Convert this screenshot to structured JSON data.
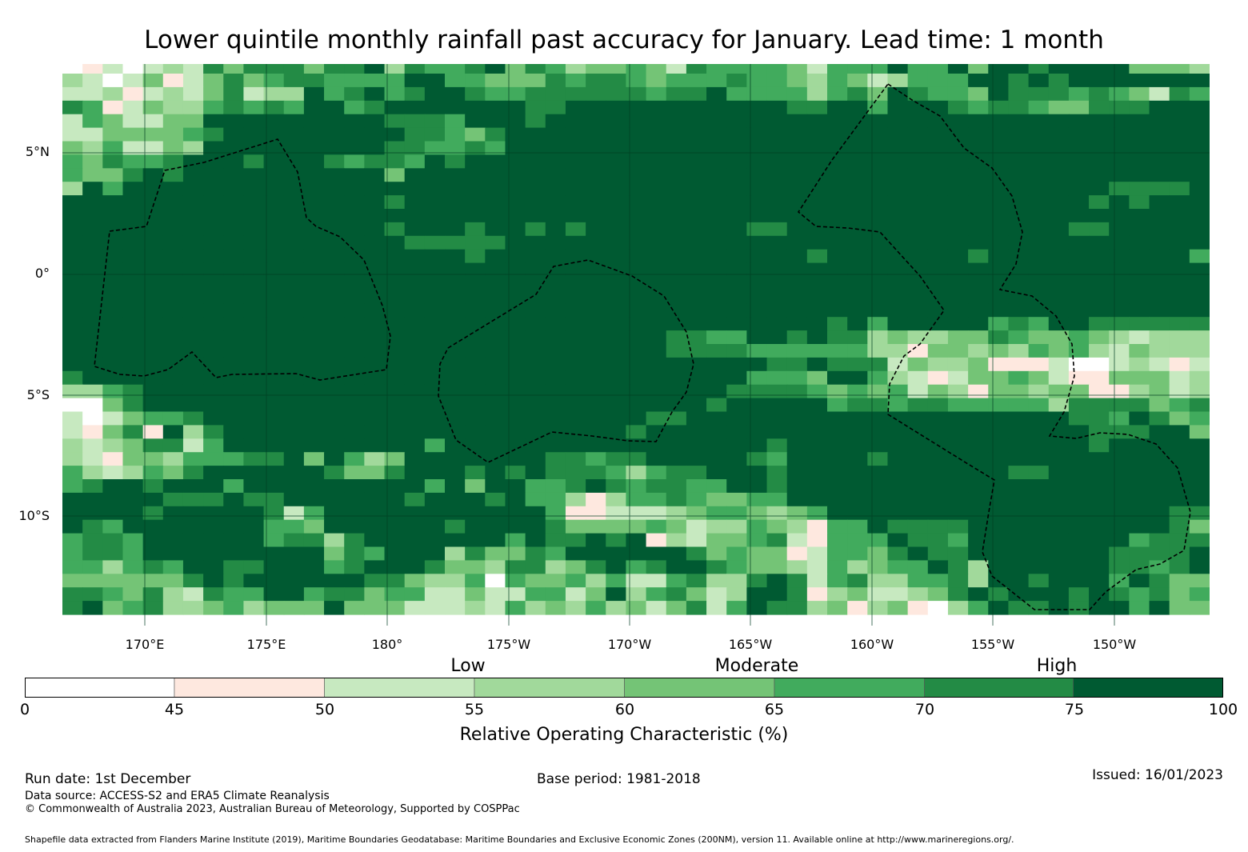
{
  "title": "Lower quintile monthly rainfall past accuracy for January. Lead time: 1 month",
  "lat_labels": [
    "5°N",
    "0°",
    "5°S",
    "10°S"
  ],
  "lon_labels": [
    "170°E",
    "175°E",
    "180°",
    "175°W",
    "170°W",
    "165°W",
    "160°W",
    "155°W",
    "150°W"
  ],
  "colorbar": {
    "levels": [
      "Low",
      "Moderate",
      "High"
    ],
    "ticks": [
      "0",
      "45",
      "50",
      "55",
      "60",
      "65",
      "70",
      "75",
      "100"
    ],
    "label": "Relative Operating Characteristic (%)"
  },
  "footer": {
    "run_date": "Run date: 1st December",
    "base_period": "Base period: 1981-2018",
    "issued": "Issued: 16/01/2023",
    "data_source": "Data source: ACCESS-S2 and ERA5 Climate Reanalysis",
    "copyright": "© Commonwealth of Australia 2023, Australian Bureau of Meteorology, Supported by COSPPac",
    "shapefile": "Shapefile data extracted from Flanders Marine Institute (2019), Maritime Boundaries Geodatabase: Maritime Boundaries and Exclusive Economic Zones (200NM), version 11. Available online at http://www.marineregions.org/."
  },
  "chart_data": {
    "type": "heatmap",
    "title": "Lower quintile monthly rainfall past accuracy for January. Lead time: 1 month",
    "value_label": "Relative Operating Characteristic (%)",
    "bins": [
      [
        0,
        45
      ],
      [
        45,
        50
      ],
      [
        50,
        55
      ],
      [
        55,
        60
      ],
      [
        60,
        65
      ],
      [
        65,
        70
      ],
      [
        70,
        75
      ],
      [
        75,
        100
      ]
    ],
    "palette": [
      "#ffffff",
      "#fee8df",
      "#c7e9c0",
      "#a1d99b",
      "#74c476",
      "#41ab5d",
      "#238b45",
      "#005a32"
    ],
    "lon_range": [
      "167°E",
      "146°W"
    ],
    "lat_range": [
      "8°N",
      "14°S"
    ],
    "grid_note": "rows north to south, columns west to east, each digit = bin index",
    "rows": [
      "012023264666466736556746534454265555425557557477677774443",
      "320241246456655557755444656654555655435423555776767777777",
      "223123246233756756776556666665667555535647655476665654265",
      "651243356565775677777776677777777777667757776566544666777",
      "254224477777777766657776777777777777777777777777777777777",
      "224444567777777776654677777777777777777777777777777777777",
      "435224377777777766556577777777777777777777777777777777777",
      "546556777677765665767777777777777777777777777777777777777",
      "544676777777777747777777777777777777777777777777777777777",
      "375777777777777777777777777777777777777777777777777766667",
      "777777777777777767777777777777777777777777777777777676777",
      "777777777777777777777777777777777777777777777777777777777",
      "777777777777777767776776767777777766777777777777776677777",
      "777777777777777776666677777777777777777777777777777777777",
      "777777777777777777776777777777777777767777777677777777775",
      "777777777777777777777777777777777777777777777777777777777",
      "777777777777777777777777777777777777777777777777777777777",
      "777777777777777777777777777777777777777777777777777777777",
      "777777777777777777777777777777777777777777777777777777777",
      "777777777777777777777777777777777777776757777756577666666",
      "777777777777777777777777777777665577676634334465445432333",
      "777777777777777777777777777777666655555533144343545324333",
      "777777777777777777777777777777777776676662433411120023212",
      "677777777777777777777777777777777755547753212445421144423",
      "335677777777777777777777777777777666654545243144344113423 3",
      "004677777777777777777777777777776777775665665555536666456 74",
      "202455677777777777777777777776677777777777777777776657645",
      "214617367777777777777777777767777777777777777777777666774",
      "323466257777777777577777777777777776777777777777777677777 7",
      "321443555667475347777777665667777765777767777777777777777",
      "532354677777764467776767666535667776777777777776677777777 77",
      "567767775777777777574775567656655776777777777777777777777",
      "777776667667777776777675531355654455777777777777777777777",
      "777767777762577777777777511222345543457777777777777777766",
      "765777777755477777767777644445423354315576666777777777764",
      "566577777756636777777757667671324456215557665777777775666",
      "566577777777746577736446577777764544125546766777777766667",
      "553565776677756777644366346756776544325345576377777766567",
      "444444676777777664335054453522563367625633556377677757644",
      "665463265577566455224225524735642377613422346767776765645",
      "674563345344474442223253435342462576634134103576676775744"
    ]
  }
}
